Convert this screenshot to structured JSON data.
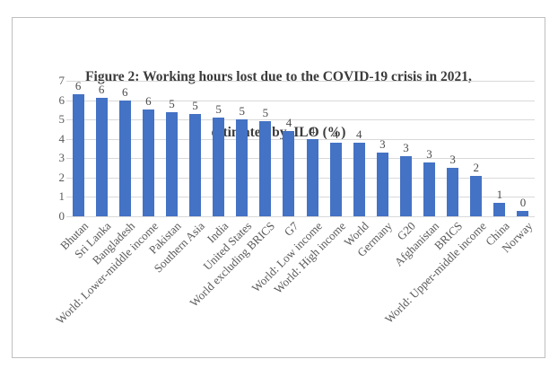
{
  "header": {
    "title_line1": "Figure 2: Working hours lost due to the COVID-19 crisis in 2021,",
    "title_line2": "estimated by  ILO (%)"
  },
  "chart_data": {
    "type": "bar",
    "title": "Figure 2: Working hours lost due to the COVID-19 crisis in 2021, estimated by ILO (%)",
    "xlabel": "",
    "ylabel": "",
    "ylim": [
      0,
      7
    ],
    "yticks": [
      0,
      1,
      2,
      3,
      4,
      5,
      6,
      7
    ],
    "grid": true,
    "legend": false,
    "categories": [
      "Bhutan",
      "Sri Lanka",
      "Bangladesh",
      "World: Lower-middle income",
      "Pakistan",
      "Southern Asia",
      "India",
      "United States",
      "World excluding BRICS",
      "G7",
      "World: Low income",
      "World: High income",
      "World",
      "Germany",
      "G20",
      "Afghanistan",
      "BRICS",
      "World: Upper-middle income",
      "China",
      "Norway"
    ],
    "values": [
      6.3,
      6.1,
      6.0,
      5.5,
      5.4,
      5.3,
      5.1,
      5.0,
      4.9,
      4.4,
      4.0,
      3.8,
      3.8,
      3.3,
      3.1,
      2.8,
      2.5,
      2.1,
      0.7,
      0.3
    ],
    "data_labels": [
      "6",
      "6",
      "6",
      "6",
      "5",
      "5",
      "5",
      "5",
      "5",
      "4",
      "4",
      "4",
      "4",
      "3",
      "3",
      "3",
      "3",
      "2",
      "1",
      "0"
    ]
  },
  "colors": {
    "bar": "#4472C4",
    "gridline": "#D9D9D9",
    "axis_text": "#595959",
    "data_label_text": "#4a4a4a",
    "title_text": "#3B3B3B",
    "frame_border": "#BFBFBF",
    "background": "#FFFFFF"
  }
}
